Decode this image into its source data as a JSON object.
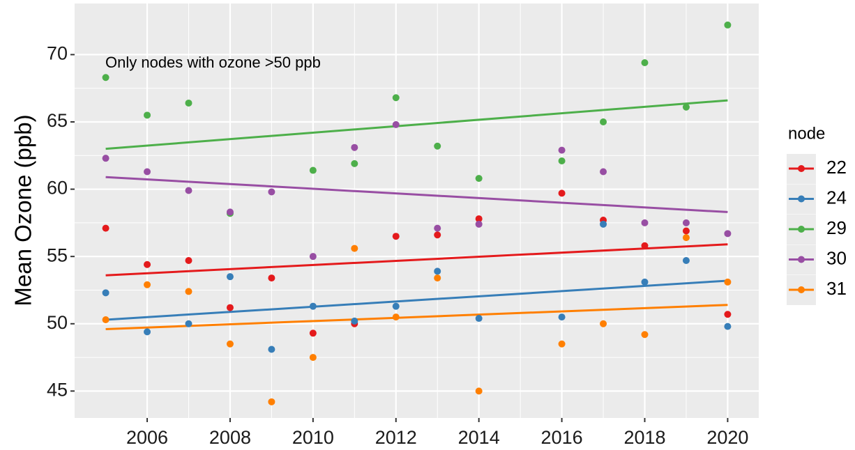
{
  "chart_data": {
    "type": "scatter",
    "y_label": "Mean Ozone (ppb)",
    "annotation": "Only nodes with ozone >50 ppb",
    "legend_title": "node",
    "legend_position": "right",
    "grid": true,
    "x": [
      2005,
      2006,
      2007,
      2008,
      2009,
      2010,
      2011,
      2012,
      2013,
      2014,
      2016,
      2017,
      2018,
      2019,
      2020
    ],
    "xlim": [
      2004.25,
      2020.75
    ],
    "xticks": [
      2006,
      2008,
      2010,
      2012,
      2014,
      2016,
      2018,
      2020
    ],
    "ylim": [
      43,
      73.8
    ],
    "yticks": [
      45,
      50,
      55,
      60,
      65,
      70
    ],
    "series": [
      {
        "name": "22",
        "color": "#e41a1c",
        "values": [
          57.1,
          54.4,
          54.7,
          51.2,
          53.4,
          49.3,
          50.0,
          56.5,
          56.6,
          57.8,
          59.7,
          57.7,
          55.8,
          56.9,
          50.7
        ],
        "fit": [
          53.6,
          55.9
        ]
      },
      {
        "name": "24",
        "color": "#377eb8",
        "values": [
          52.3,
          49.4,
          50.0,
          53.5,
          48.1,
          51.3,
          50.2,
          51.3,
          53.9,
          50.4,
          50.5,
          57.4,
          53.1,
          54.7,
          49.8
        ],
        "fit": [
          50.3,
          53.2
        ]
      },
      {
        "name": "29",
        "color": "#4daf4a",
        "values": [
          68.3,
          65.5,
          66.4,
          58.2,
          null,
          61.4,
          61.9,
          66.8,
          63.2,
          60.8,
          62.1,
          65.0,
          69.4,
          66.1,
          72.2
        ],
        "fit": [
          63.0,
          66.6
        ]
      },
      {
        "name": "30",
        "color": "#984ea3",
        "values": [
          62.3,
          61.3,
          59.9,
          58.3,
          59.8,
          55.0,
          63.1,
          64.8,
          57.1,
          57.4,
          62.9,
          61.3,
          57.5,
          57.5,
          56.7
        ],
        "fit": [
          60.9,
          58.3
        ]
      },
      {
        "name": "31",
        "color": "#ff7f00",
        "values": [
          50.3,
          52.9,
          52.4,
          48.5,
          44.2,
          47.5,
          55.6,
          50.5,
          53.4,
          45.0,
          48.5,
          50.0,
          49.2,
          56.4,
          53.1
        ],
        "fit": [
          49.6,
          51.4
        ]
      }
    ]
  }
}
